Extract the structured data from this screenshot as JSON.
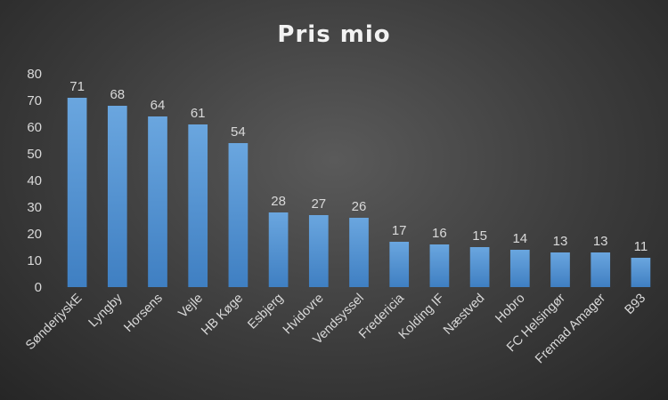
{
  "chart_data": {
    "type": "bar",
    "title": "Pris mio",
    "xlabel": "",
    "ylabel": "",
    "ylim": [
      0,
      80
    ],
    "yticks": [
      0,
      10,
      20,
      30,
      40,
      50,
      60,
      70,
      80
    ],
    "grid": false,
    "legend": "none",
    "bar_color": "#5b9bd5",
    "categories": [
      "SønderjyskE",
      "Lyngby",
      "Horsens",
      "Vejle",
      "HB Køge",
      "Esbjerg",
      "Hvidovre",
      "Vendsyssel",
      "Fredericia",
      "Kolding IF",
      "Næstved",
      "Hobro",
      "FC Helsingør",
      "Fremad Amager",
      "B93"
    ],
    "values": [
      71,
      68,
      64,
      61,
      54,
      28,
      27,
      26,
      17,
      16,
      15,
      14,
      13,
      13,
      11
    ],
    "data_labels": [
      "71",
      "68",
      "64",
      "61",
      "54",
      "28",
      "27",
      "26",
      "17",
      "16",
      "15",
      "14",
      "13",
      "13",
      "11"
    ]
  }
}
